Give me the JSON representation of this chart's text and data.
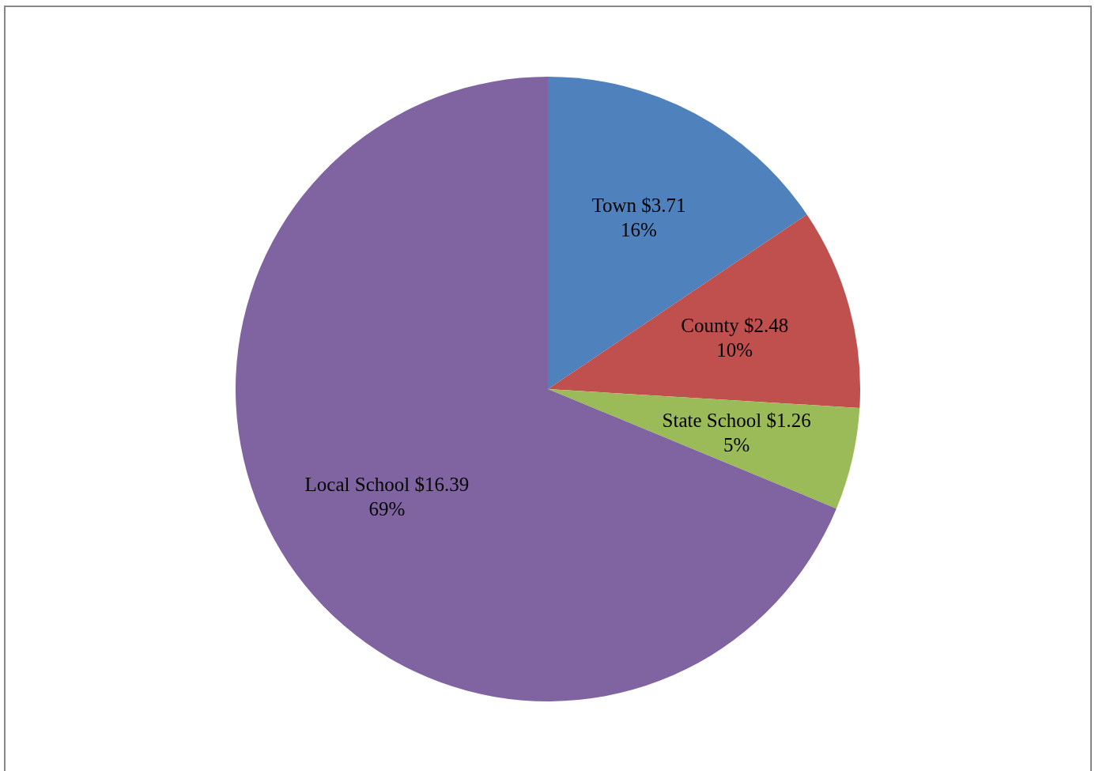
{
  "chart_data": {
    "type": "pie",
    "categories": [
      "Town",
      "County",
      "State School",
      "Local School"
    ],
    "values": [
      3.71,
      2.48,
      1.26,
      16.39
    ],
    "colors": [
      "#4f81bd",
      "#c0504d",
      "#9bbb59",
      "#8064a2"
    ],
    "value_labels": [
      "$3.71\n16%",
      "$2.48\n10%",
      "$1.26\n5%",
      "$16.39\n69%"
    ],
    "legend": false
  }
}
